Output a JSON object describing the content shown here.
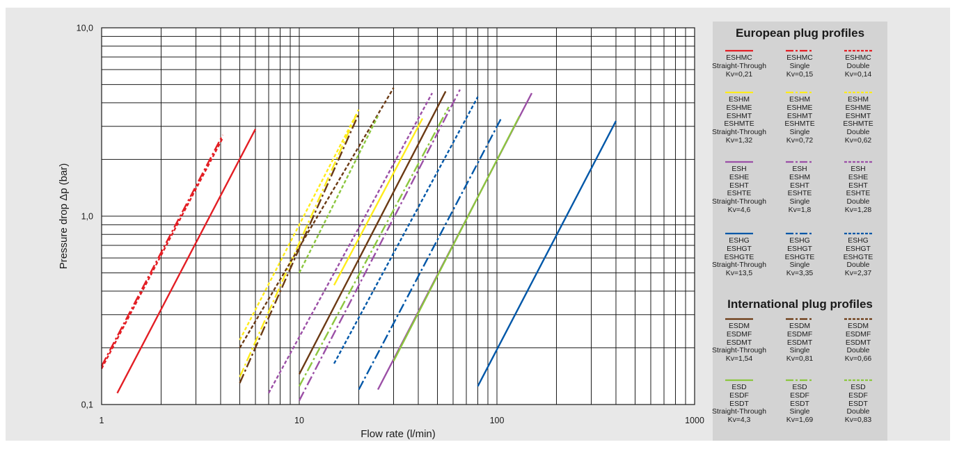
{
  "chart_data": {
    "type": "line",
    "xlabel": "Flow rate (l/min)",
    "ylabel": "Pressure drop Δp (bar)",
    "x_scale": "log",
    "y_scale": "log",
    "xlim": [
      1,
      1000
    ],
    "ylim": [
      0.1,
      10
    ],
    "x_ticks": [
      "1",
      "10",
      "100",
      "1000"
    ],
    "y_ticks": [
      "0,1",
      "1,0",
      "10,0"
    ],
    "grid": true,
    "legend_position": "right",
    "series": [
      {
        "color": "#e31e24",
        "dash": "solid",
        "x": [
          1.2,
          6
        ],
        "y": [
          0.115,
          2.9
        ]
      },
      {
        "color": "#e31e24",
        "dash": "dashdot",
        "x": [
          1,
          4.1
        ],
        "y": [
          0.16,
          2.7
        ]
      },
      {
        "color": "#e31e24",
        "dash": "dash",
        "x": [
          1,
          4.1
        ],
        "y": [
          0.155,
          2.6
        ]
      },
      {
        "color": "#ffec1a",
        "dash": "solid",
        "x": [
          15,
          42
        ],
        "y": [
          0.43,
          3.3
        ]
      },
      {
        "color": "#ffec1a",
        "dash": "dashdot",
        "x": [
          5,
          20
        ],
        "y": [
          0.14,
          3.7
        ]
      },
      {
        "color": "#ffec1a",
        "dash": "dash",
        "x": [
          5,
          19.5
        ],
        "y": [
          0.22,
          3.5
        ]
      },
      {
        "color": "#9b4fa6",
        "dash": "solid",
        "x": [
          25,
          150
        ],
        "y": [
          0.12,
          4.5
        ]
      },
      {
        "color": "#9b4fa6",
        "dash": "dashdot",
        "x": [
          10,
          65
        ],
        "y": [
          0.105,
          4.7
        ]
      },
      {
        "color": "#9b4fa6",
        "dash": "dash",
        "x": [
          7,
          47
        ],
        "y": [
          0.115,
          4.5
        ]
      },
      {
        "color": "#0057a8",
        "dash": "solid",
        "x": [
          80,
          400
        ],
        "y": [
          0.125,
          3.2
        ]
      },
      {
        "color": "#0057a8",
        "dash": "dashdot",
        "x": [
          20,
          105
        ],
        "y": [
          0.12,
          3.3
        ]
      },
      {
        "color": "#0057a8",
        "dash": "dash",
        "x": [
          15,
          80
        ],
        "y": [
          0.165,
          4.3
        ]
      },
      {
        "color": "#6b3a14",
        "dash": "solid",
        "x": [
          10,
          55
        ],
        "y": [
          0.145,
          4.6
        ]
      },
      {
        "color": "#6b3a14",
        "dash": "dashdot",
        "x": [
          5,
          20
        ],
        "y": [
          0.13,
          3.5
        ]
      },
      {
        "color": "#6b3a14",
        "dash": "dash",
        "x": [
          5,
          30
        ],
        "y": [
          0.2,
          4.8
        ]
      },
      {
        "color": "#8cc63f",
        "dash": "solid",
        "x": [
          30,
          130
        ],
        "y": [
          0.17,
          3.4
        ]
      },
      {
        "color": "#8cc63f",
        "dash": "dashdot",
        "x": [
          10,
          57
        ],
        "y": [
          0.125,
          3.8
        ]
      },
      {
        "color": "#8cc63f",
        "dash": "dash",
        "x": [
          10,
          25
        ],
        "y": [
          0.5,
          3.4
        ]
      }
    ]
  },
  "legend": {
    "european_title": "European plug profiles",
    "international_title": "International plug profiles",
    "european_rows": [
      [
        {
          "color": "#e31e24",
          "dash": "solid",
          "text": "ESHMC\nStraight-Through\nKv=0,21"
        },
        {
          "color": "#e31e24",
          "dash": "dashdot",
          "text": "ESHMC\nSingle\nKv=0,15"
        },
        {
          "color": "#e31e24",
          "dash": "dash",
          "text": "ESHMC\nDouble\nKv=0,14"
        }
      ],
      [
        {
          "color": "#ffec1a",
          "dash": "solid",
          "text": "ESHM\nESHME\nESHMT\nESHMTE\nStraight-Through\nKv=1,32"
        },
        {
          "color": "#ffec1a",
          "dash": "dashdot",
          "text": "ESHM\nESHME\nESHMT\nESHMTE\nSingle\nKv=0,72"
        },
        {
          "color": "#ffec1a",
          "dash": "dash",
          "text": "ESHM\nESHME\nESHMT\nESHMTE\nDouble\nKv=0,62"
        }
      ],
      [
        {
          "color": "#9b4fa6",
          "dash": "solid",
          "text": "ESH\nESHE\nESHT\nESHTE\nStraight-Through\nKv=4,6"
        },
        {
          "color": "#9b4fa6",
          "dash": "dashdot",
          "text": "ESH\nESHM\nESHT\nESHTE\nSingle\nKv=1,8"
        },
        {
          "color": "#9b4fa6",
          "dash": "dash",
          "text": "ESH\nESHE\nESHT\nESHTE\nDouble\nKv=1,28"
        }
      ],
      [
        {
          "color": "#0057a8",
          "dash": "solid",
          "text": "ESHG\nESHGT\nESHGTE\nStraight-Through\nKv=13,5"
        },
        {
          "color": "#0057a8",
          "dash": "dashdot",
          "text": "ESHG\nESHGT\nESHGTE\nSingle\nKv=3,35"
        },
        {
          "color": "#0057a8",
          "dash": "dash",
          "text": "ESHG\nESHGT\nESHGTE\nDouble\nKv=2,37"
        }
      ]
    ],
    "international_rows": [
      [
        {
          "color": "#6b3a14",
          "dash": "solid",
          "text": "ESDM\nESDMF\nESDMT\nStraight-Through\nKv=1,54"
        },
        {
          "color": "#6b3a14",
          "dash": "dashdot",
          "text": "ESDM\nESDMF\nESDMT\nSingle\nKv=0,81"
        },
        {
          "color": "#6b3a14",
          "dash": "dash",
          "text": "ESDM\nESDMF\nESDMT\nDouble\nKv=0,66"
        }
      ],
      [
        {
          "color": "#8cc63f",
          "dash": "solid",
          "text": "ESD\nESDF\nESDT\nStraight-Through\nKv=4,3"
        },
        {
          "color": "#8cc63f",
          "dash": "dashdot",
          "text": "ESD\nESDF\nESDT\nSingle\nKv=1,69"
        },
        {
          "color": "#8cc63f",
          "dash": "dash",
          "text": "ESD\nESDF\nESDT\nDouble\nKv=0,83"
        }
      ]
    ]
  }
}
